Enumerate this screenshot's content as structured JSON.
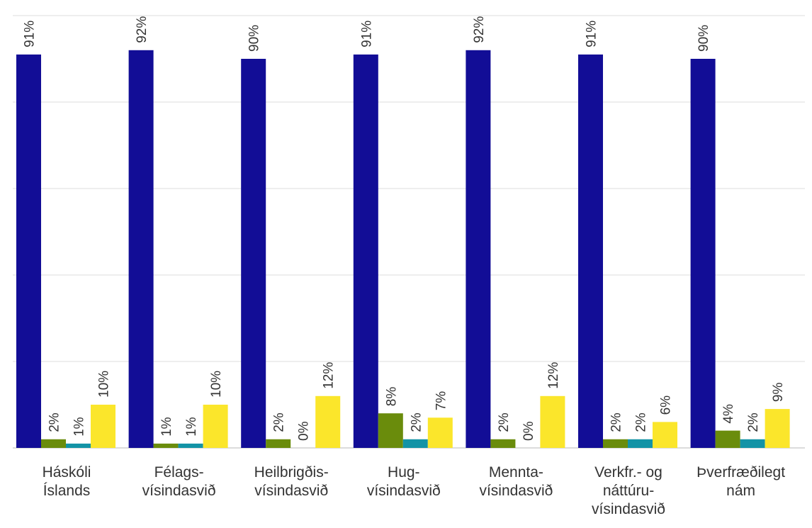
{
  "chart_data": {
    "type": "bar",
    "title": "",
    "xlabel": "",
    "ylabel": "",
    "ylim": [
      0,
      100
    ],
    "grid": true,
    "categories": [
      [
        "Háskóli",
        "Íslands"
      ],
      [
        "Félags-",
        "vísindasvið"
      ],
      [
        "Heilbrigðis-",
        "vísindasvið"
      ],
      [
        "Hug-",
        "vísindasvið"
      ],
      [
        "Mennta-",
        "vísindasvið"
      ],
      [
        "Verkfr.- og",
        "náttúru-",
        "vísindasvið"
      ],
      [
        "Þverfræðilegt",
        "nám"
      ]
    ],
    "series": [
      {
        "color": "#120d96",
        "values": [
          91,
          92,
          90,
          91,
          92,
          91,
          90
        ],
        "labels": [
          "91%",
          "92%",
          "90%",
          "91%",
          "92%",
          "91%",
          "90%"
        ]
      },
      {
        "color": "#6a8c0c",
        "values": [
          2,
          1,
          2,
          8,
          2,
          2,
          4
        ],
        "labels": [
          "2%",
          "1%",
          "2%",
          "8%",
          "2%",
          "2%",
          "4%"
        ]
      },
      {
        "color": "#1393a6",
        "values": [
          1,
          1,
          0,
          2,
          0,
          2,
          2
        ],
        "labels": [
          "1%",
          "1%",
          "0%",
          "2%",
          "0%",
          "2%",
          "2%"
        ]
      },
      {
        "color": "#fbe62b",
        "values": [
          10,
          10,
          12,
          7,
          12,
          6,
          9
        ],
        "labels": [
          "10%",
          "10%",
          "12%",
          "7%",
          "12%",
          "6%",
          "9%"
        ]
      }
    ]
  }
}
